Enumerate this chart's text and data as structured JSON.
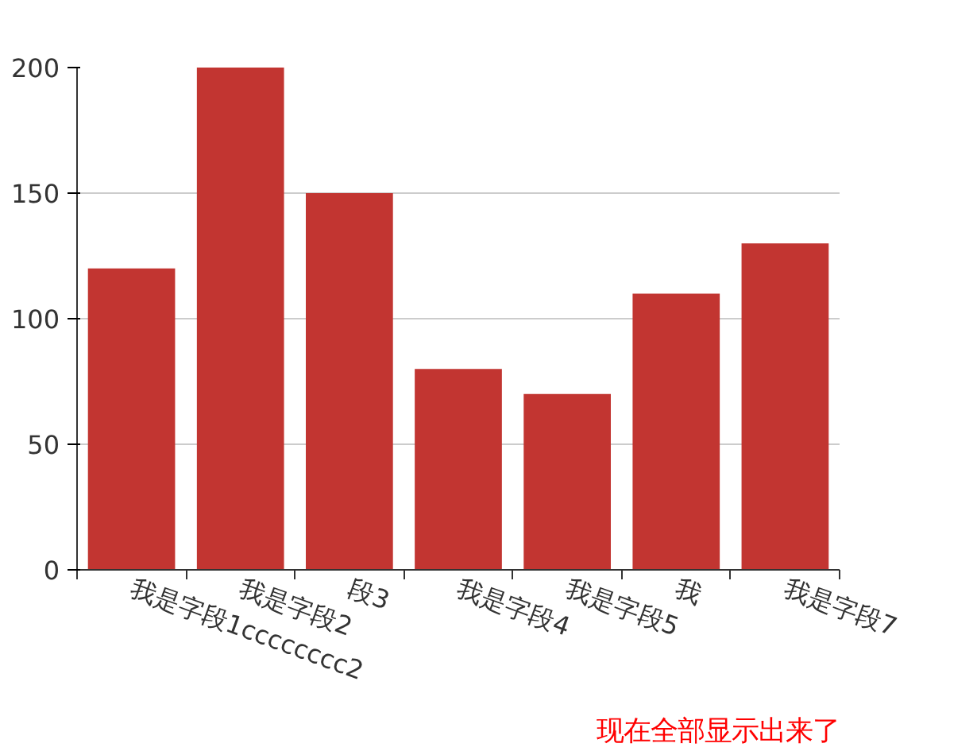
{
  "chart_data": {
    "type": "bar",
    "categories": [
      "我是字段1cccccccc2",
      "我是字段2",
      "段3",
      "我是字段4",
      "我是字段5",
      "我",
      "我是字段7"
    ],
    "values": [
      120,
      200,
      150,
      80,
      70,
      110,
      130
    ],
    "color": "#c23531",
    "ylim": [
      0,
      200
    ],
    "yticks": [
      0,
      50,
      100,
      150,
      200
    ],
    "grid": "y",
    "annotations": [
      "现在全部显示出来了"
    ]
  }
}
